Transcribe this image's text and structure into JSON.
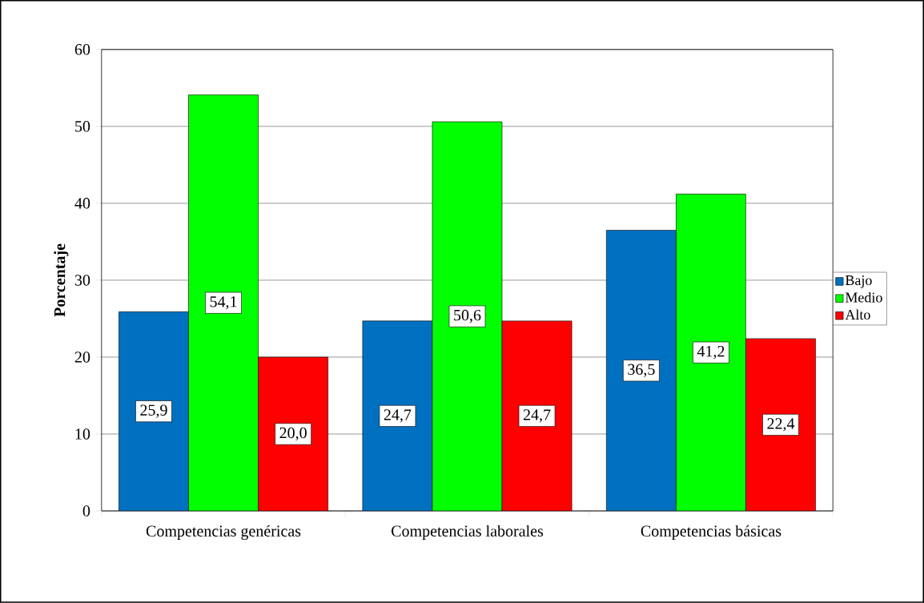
{
  "chart_data": {
    "type": "bar",
    "ylabel": "Porcentaje",
    "categories": [
      "Competencias genéricas",
      "Competencias laborales",
      "Competencias básicas"
    ],
    "series": [
      {
        "name": "Bajo",
        "color": "#0070c0",
        "values": [
          25.9,
          24.7,
          36.5
        ],
        "value_labels": [
          "25,9",
          "24,7",
          "36,5"
        ]
      },
      {
        "name": "Medio",
        "color": "#00ff00",
        "values": [
          54.1,
          50.6,
          41.2
        ],
        "value_labels": [
          "54,1",
          "50,6",
          "41,2"
        ]
      },
      {
        "name": "Alto",
        "color": "#ff0000",
        "values": [
          20.0,
          24.7,
          22.4
        ],
        "value_labels": [
          "20,0",
          "24,7",
          "22,4"
        ]
      }
    ],
    "ylim": [
      0,
      60
    ],
    "yticks": [
      0,
      10,
      20,
      30,
      40,
      50,
      60
    ],
    "grid": "y",
    "legend": "right"
  }
}
